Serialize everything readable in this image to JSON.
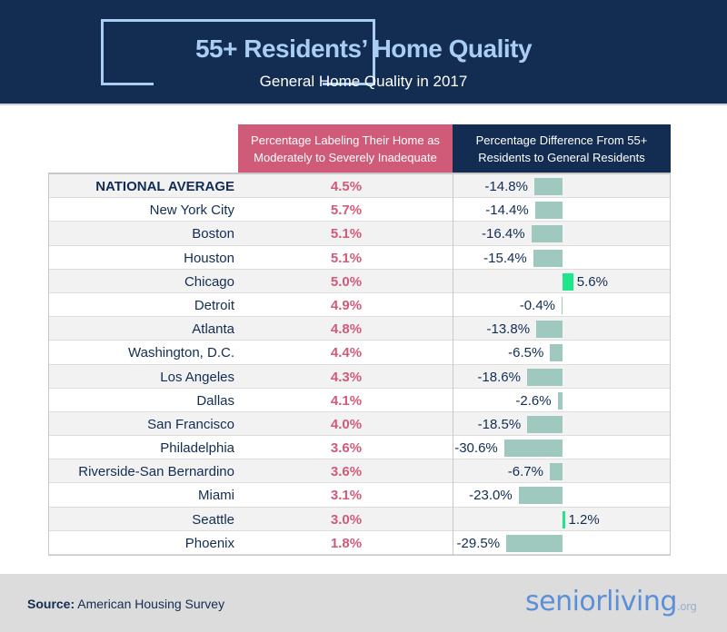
{
  "header": {
    "title": "55+ Residents’ Home Quality",
    "subtitle": "General Home Quality in 2017"
  },
  "chart_data": {
    "type": "table",
    "title": "55+ Residents’ Home Quality",
    "subtitle": "General Home Quality in 2017",
    "columns": [
      "Percentage Labeling Their Home as Moderately to Severely Inadequate",
      "Percentage Difference From 55+ Residents to General Residents"
    ],
    "rows": [
      {
        "city": "NATIONAL AVERAGE",
        "pct": "4.5%",
        "diff": -14.8,
        "diff_label": "-14.8%"
      },
      {
        "city": "New York City",
        "pct": "5.7%",
        "diff": -14.4,
        "diff_label": "-14.4%"
      },
      {
        "city": "Boston",
        "pct": "5.1%",
        "diff": -16.4,
        "diff_label": "-16.4%"
      },
      {
        "city": "Houston",
        "pct": "5.1%",
        "diff": -15.4,
        "diff_label": "-15.4%"
      },
      {
        "city": "Chicago",
        "pct": "5.0%",
        "diff": 5.6,
        "diff_label": "5.6%"
      },
      {
        "city": "Detroit",
        "pct": "4.9%",
        "diff": -0.4,
        "diff_label": "-0.4%"
      },
      {
        "city": "Atlanta",
        "pct": "4.8%",
        "diff": -13.8,
        "diff_label": "-13.8%"
      },
      {
        "city": "Washington, D.C.",
        "pct": "4.4%",
        "diff": -6.5,
        "diff_label": "-6.5%"
      },
      {
        "city": "Los Angeles",
        "pct": "4.3%",
        "diff": -18.6,
        "diff_label": "-18.6%"
      },
      {
        "city": "Dallas",
        "pct": "4.1%",
        "diff": -2.6,
        "diff_label": "-2.6%"
      },
      {
        "city": "San Francisco",
        "pct": "4.0%",
        "diff": -18.5,
        "diff_label": "-18.5%"
      },
      {
        "city": "Philadelphia",
        "pct": "3.6%",
        "diff": -30.6,
        "diff_label": "-30.6%"
      },
      {
        "city": "Riverside-San Bernardino",
        "pct": "3.6%",
        "diff": -6.7,
        "diff_label": "-6.7%"
      },
      {
        "city": "Miami",
        "pct": "3.1%",
        "diff": -23.0,
        "diff_label": "-23.0%"
      },
      {
        "city": "Seattle",
        "pct": "3.0%",
        "diff": 1.2,
        "diff_label": "1.2%"
      },
      {
        "city": "Phoenix",
        "pct": "1.8%",
        "diff": -29.5,
        "diff_label": "-29.5%"
      }
    ],
    "colors": {
      "negative": "#9fc9be",
      "positive": "#1ee68a"
    }
  },
  "footer": {
    "source_label": "Source:",
    "source": "American Housing Survey",
    "logo": "seniorliving",
    "logo_suffix": ".org"
  }
}
